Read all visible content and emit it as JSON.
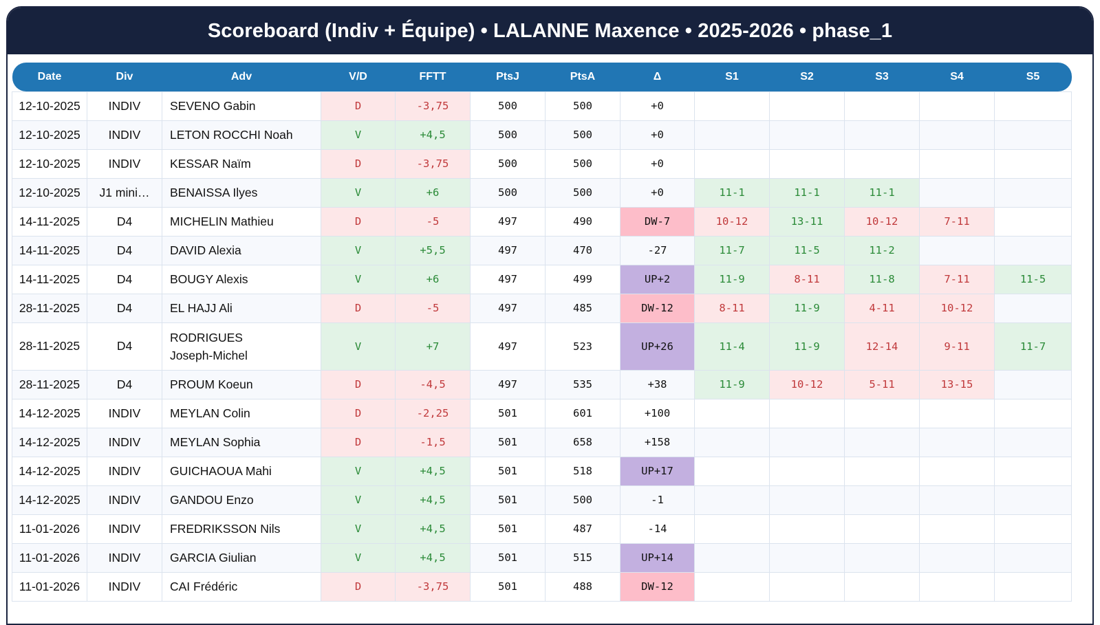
{
  "title": "Scoreboard (Indiv + Équipe) • LALANNE Maxence • 2025-2026 • phase_1",
  "columns": [
    "Date",
    "Div",
    "Adv",
    "V/D",
    "FFTT",
    "PtsJ",
    "PtsA",
    "Δ",
    "S1",
    "S2",
    "S3",
    "S4",
    "S5"
  ],
  "colors": {
    "title_bg": "#17223d",
    "header_bg": "#2176b4",
    "win_bg": "#e2f3e6",
    "win_fg": "#2a8a37",
    "loss_bg": "#fde7e8",
    "loss_fg": "#c0393b",
    "up_bg": "#c3b0e0",
    "dw_bg": "#fdbdc9"
  },
  "rows": [
    {
      "date": "12-10-2025",
      "div": "INDIV",
      "adv": [
        "SEVENO Gabin"
      ],
      "vd": "D",
      "fftt": "-3,75",
      "ptsj": "500",
      "ptsa": "500",
      "delta": "+0",
      "delta_type": "neutral",
      "sets": [
        "",
        "",
        "",
        "",
        ""
      ]
    },
    {
      "date": "12-10-2025",
      "div": "INDIV",
      "adv": [
        "LETON ROCCHI Noah"
      ],
      "vd": "V",
      "fftt": "+4,5",
      "ptsj": "500",
      "ptsa": "500",
      "delta": "+0",
      "delta_type": "neutral",
      "sets": [
        "",
        "",
        "",
        "",
        ""
      ]
    },
    {
      "date": "12-10-2025",
      "div": "INDIV",
      "adv": [
        "KESSAR Naïm"
      ],
      "vd": "D",
      "fftt": "-3,75",
      "ptsj": "500",
      "ptsa": "500",
      "delta": "+0",
      "delta_type": "neutral",
      "sets": [
        "",
        "",
        "",
        "",
        ""
      ]
    },
    {
      "date": "12-10-2025",
      "div": "J1 mini…",
      "adv": [
        "BENAISSA Ilyes"
      ],
      "vd": "V",
      "fftt": "+6",
      "ptsj": "500",
      "ptsa": "500",
      "delta": "+0",
      "delta_type": "neutral",
      "sets": [
        "11-1",
        "11-1",
        "11-1",
        "",
        ""
      ]
    },
    {
      "date": "14-11-2025",
      "div": "D4",
      "adv": [
        "MICHELIN Mathieu"
      ],
      "vd": "D",
      "fftt": "-5",
      "ptsj": "497",
      "ptsa": "490",
      "delta": "DW-7",
      "delta_type": "dw",
      "sets": [
        "10-12",
        "13-11",
        "10-12",
        "7-11",
        ""
      ]
    },
    {
      "date": "14-11-2025",
      "div": "D4",
      "adv": [
        "DAVID Alexia"
      ],
      "vd": "V",
      "fftt": "+5,5",
      "ptsj": "497",
      "ptsa": "470",
      "delta": "-27",
      "delta_type": "neutral",
      "sets": [
        "11-7",
        "11-5",
        "11-2",
        "",
        ""
      ]
    },
    {
      "date": "14-11-2025",
      "div": "D4",
      "adv": [
        "BOUGY Alexis"
      ],
      "vd": "V",
      "fftt": "+6",
      "ptsj": "497",
      "ptsa": "499",
      "delta": "UP+2",
      "delta_type": "up",
      "sets": [
        "11-9",
        "8-11",
        "11-8",
        "7-11",
        "11-5"
      ]
    },
    {
      "date": "28-11-2025",
      "div": "D4",
      "adv": [
        "EL HAJJ Ali"
      ],
      "vd": "D",
      "fftt": "-5",
      "ptsj": "497",
      "ptsa": "485",
      "delta": "DW-12",
      "delta_type": "dw",
      "sets": [
        "8-11",
        "11-9",
        "4-11",
        "10-12",
        ""
      ]
    },
    {
      "date": "28-11-2025",
      "div": "D4",
      "adv": [
        "RODRIGUES",
        "Joseph-Michel"
      ],
      "vd": "V",
      "fftt": "+7",
      "ptsj": "497",
      "ptsa": "523",
      "delta": "UP+26",
      "delta_type": "up",
      "sets": [
        "11-4",
        "11-9",
        "12-14",
        "9-11",
        "11-7"
      ]
    },
    {
      "date": "28-11-2025",
      "div": "D4",
      "adv": [
        "PROUM Koeun"
      ],
      "vd": "D",
      "fftt": "-4,5",
      "ptsj": "497",
      "ptsa": "535",
      "delta": "+38",
      "delta_type": "neutral",
      "sets": [
        "11-9",
        "10-12",
        "5-11",
        "13-15",
        ""
      ]
    },
    {
      "date": "14-12-2025",
      "div": "INDIV",
      "adv": [
        "MEYLAN Colin"
      ],
      "vd": "D",
      "fftt": "-2,25",
      "ptsj": "501",
      "ptsa": "601",
      "delta": "+100",
      "delta_type": "neutral",
      "sets": [
        "",
        "",
        "",
        "",
        ""
      ]
    },
    {
      "date": "14-12-2025",
      "div": "INDIV",
      "adv": [
        "MEYLAN Sophia"
      ],
      "vd": "D",
      "fftt": "-1,5",
      "ptsj": "501",
      "ptsa": "658",
      "delta": "+158",
      "delta_type": "neutral",
      "sets": [
        "",
        "",
        "",
        "",
        ""
      ]
    },
    {
      "date": "14-12-2025",
      "div": "INDIV",
      "adv": [
        "GUICHAOUA Mahi"
      ],
      "vd": "V",
      "fftt": "+4,5",
      "ptsj": "501",
      "ptsa": "518",
      "delta": "UP+17",
      "delta_type": "up",
      "sets": [
        "",
        "",
        "",
        "",
        ""
      ]
    },
    {
      "date": "14-12-2025",
      "div": "INDIV",
      "adv": [
        "GANDOU Enzo"
      ],
      "vd": "V",
      "fftt": "+4,5",
      "ptsj": "501",
      "ptsa": "500",
      "delta": "-1",
      "delta_type": "neutral",
      "sets": [
        "",
        "",
        "",
        "",
        ""
      ]
    },
    {
      "date": "11-01-2026",
      "div": "INDIV",
      "adv": [
        "FREDRIKSSON Nils"
      ],
      "vd": "V",
      "fftt": "+4,5",
      "ptsj": "501",
      "ptsa": "487",
      "delta": "-14",
      "delta_type": "neutral",
      "sets": [
        "",
        "",
        "",
        "",
        ""
      ]
    },
    {
      "date": "11-01-2026",
      "div": "INDIV",
      "adv": [
        "GARCIA Giulian"
      ],
      "vd": "V",
      "fftt": "+4,5",
      "ptsj": "501",
      "ptsa": "515",
      "delta": "UP+14",
      "delta_type": "up",
      "sets": [
        "",
        "",
        "",
        "",
        ""
      ]
    },
    {
      "date": "11-01-2026",
      "div": "INDIV",
      "adv": [
        "CAI Frédéric"
      ],
      "vd": "D",
      "fftt": "-3,75",
      "ptsj": "501",
      "ptsa": "488",
      "delta": "DW-12",
      "delta_type": "dw",
      "sets": [
        "",
        "",
        "",
        "",
        ""
      ]
    }
  ]
}
